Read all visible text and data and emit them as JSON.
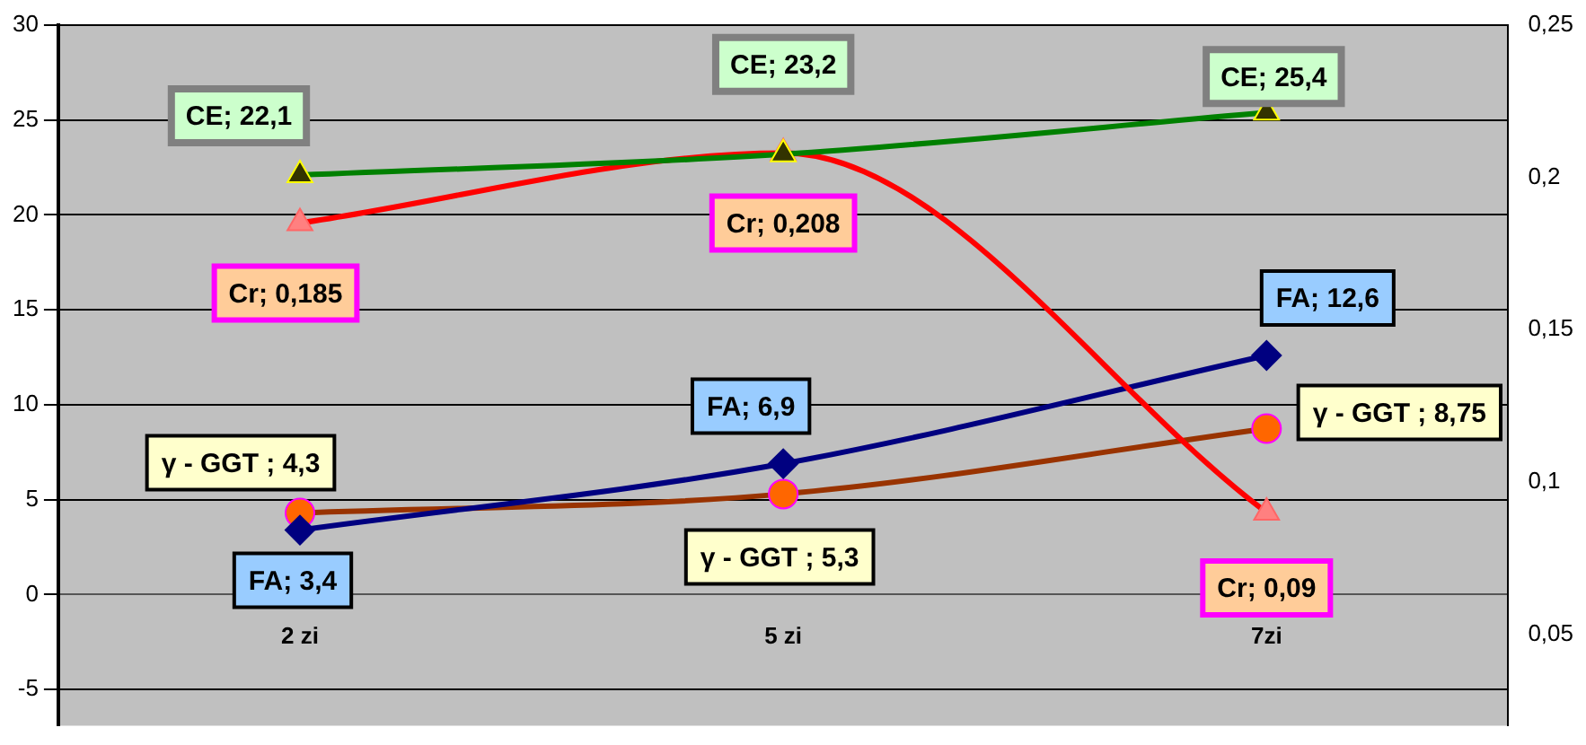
{
  "chart_data": {
    "type": "line",
    "categories": [
      "2 zi",
      "5 zi",
      "7zi"
    ],
    "series": [
      {
        "color": "#008000",
        "marker": "triangle",
        "values": [
          22.1,
          23.2,
          25.4
        ],
        "value_labels": [
          "CE; 22,1",
          "CE; 23,2",
          "CE; 25,4"
        ]
      },
      {
        "color": "#ff0000",
        "marker": "triangle",
        "axis": "y2",
        "values": [
          0.185,
          0.208,
          0.09
        ],
        "value_labels": [
          "Cr; 0,185",
          "Cr; 0,208",
          "Cr; 0,09"
        ]
      },
      {
        "color": "#000080",
        "marker": "diamond",
        "values": [
          3.4,
          6.9,
          12.6
        ],
        "value_labels": [
          "FA; 3,4",
          "FA; 6,9",
          "FA; 12,6"
        ]
      },
      {
        "color": "#993300",
        "marker": "circle",
        "values": [
          4.3,
          5.3,
          8.75
        ],
        "value_labels": [
          "γ - GGT ; 4,3",
          "γ - GGT ; 5,3",
          "γ - GGT ; 8,75"
        ]
      }
    ],
    "ylim": [
      -6.9,
      30
    ],
    "yticks": [
      -5,
      0,
      5,
      10,
      15,
      20,
      25,
      30
    ],
    "y2lim": [
      0.02,
      0.25
    ],
    "y2ticks": [
      {
        "value": 0.05,
        "label": "0,05"
      },
      {
        "value": 0.1,
        "label": "0,1"
      },
      {
        "value": 0.15,
        "label": "0,15"
      },
      {
        "value": 0.2,
        "label": "0,2"
      },
      {
        "value": 0.25,
        "label": "0,25"
      }
    ],
    "grid": "y",
    "legend": false
  }
}
